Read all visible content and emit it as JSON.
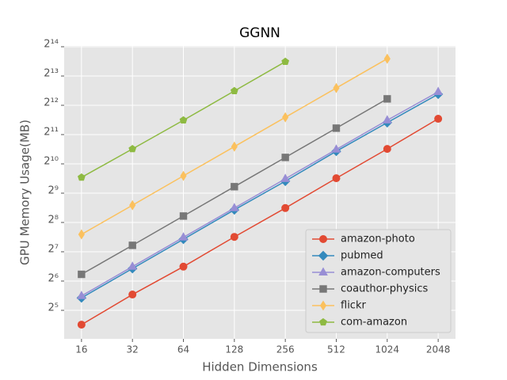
{
  "chart_data": {
    "type": "line",
    "title": "GGNN",
    "x_label": "Hidden Dimensions",
    "y_label": "GPU Memory Usage(MB)",
    "categories": [
      "16",
      "32",
      "64",
      "128",
      "256",
      "512",
      "1024",
      "2048"
    ],
    "log_y": true,
    "log_base": 2,
    "grid": true,
    "legend": "lower right",
    "ylim": [
      16.3,
      16700
    ],
    "yticks": [
      {
        "value": 32,
        "label": "2⁵"
      },
      {
        "value": 64,
        "label": "2⁶"
      },
      {
        "value": 128,
        "label": "2⁷"
      },
      {
        "value": 256,
        "label": "2⁸"
      },
      {
        "value": 512,
        "label": "2⁹"
      },
      {
        "value": 1024,
        "label": "2¹⁰"
      },
      {
        "value": 2048,
        "label": "2¹¹"
      },
      {
        "value": 4096,
        "label": "2¹²"
      },
      {
        "value": 8192,
        "label": "2¹³"
      },
      {
        "value": 16384,
        "label": "2¹⁴"
      }
    ],
    "series": [
      {
        "name": "amazon-photo",
        "color": "#E24A33",
        "marker": "circle",
        "values": [
          22.8,
          46.5,
          90,
          182,
          360,
          729,
          1458,
          2978
        ]
      },
      {
        "name": "pubmed",
        "color": "#348ABD",
        "marker": "diamond",
        "values": [
          43,
          86,
          172,
          345,
          680,
          1380,
          2720,
          5330
        ]
      },
      {
        "name": "amazon-computers",
        "color": "#988ED5",
        "marker": "triangle",
        "values": [
          45,
          90,
          180,
          360,
          719,
          1440,
          2876,
          5630
        ]
      },
      {
        "name": "coauthor-physics",
        "color": "#777777",
        "marker": "square",
        "values": [
          75,
          149,
          298,
          597,
          1193,
          2385,
          4770,
          null
        ]
      },
      {
        "name": "flickr",
        "color": "#FBC15E",
        "marker": "thin-diamond",
        "values": [
          193,
          385,
          771,
          1541,
          3083,
          6165,
          12330,
          null
        ]
      },
      {
        "name": "com-amazon",
        "color": "#8EBA42",
        "marker": "pentagon",
        "values": [
          744,
          1458,
          2876,
          5750,
          11500,
          null,
          null,
          null
        ]
      }
    ]
  }
}
